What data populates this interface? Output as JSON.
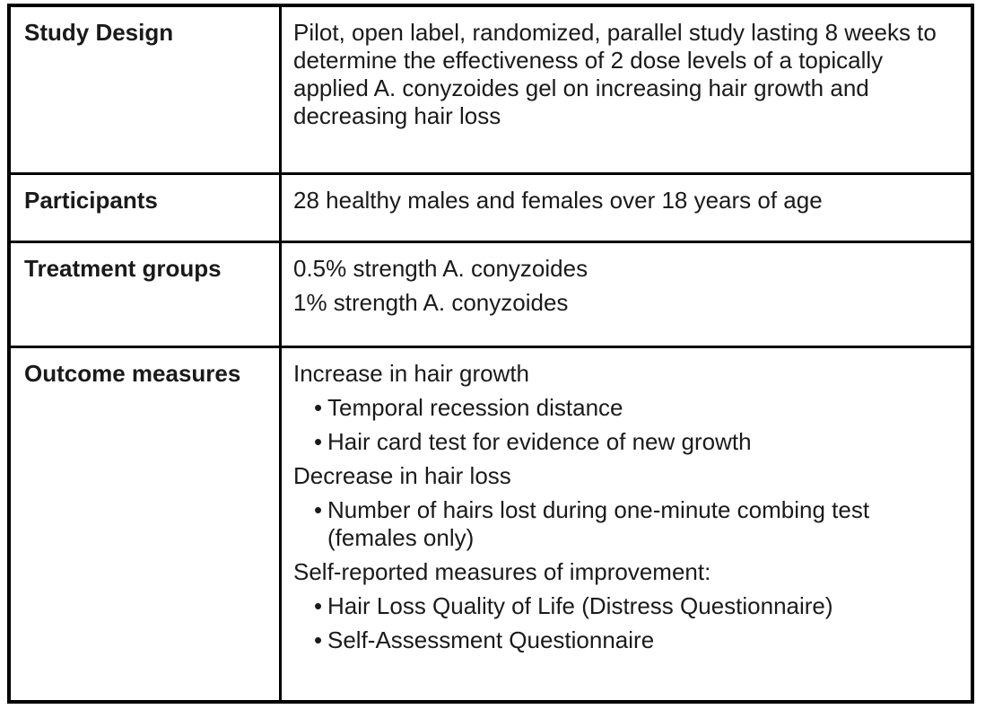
{
  "table": {
    "rows": [
      {
        "label": "Study Design",
        "lines": [
          "Pilot, open label, randomized, parallel study lasting 8 weeks to determine the effectiveness of 2 dose levels of a topically applied A. conyzoides gel on increasing hair growth and decreasing hair loss"
        ]
      },
      {
        "label": "Participants",
        "lines": [
          "28 healthy males and females over 18 years of age"
        ]
      },
      {
        "label": "Treatment groups",
        "lines": [
          "0.5% strength A. conyzoides",
          "1% strength A. conyzoides"
        ]
      },
      {
        "label": "Outcome measures",
        "lines": [
          "Increase in hair growth",
          "Temporal recession distance",
          "Hair card test for evidence of new growth",
          "Decrease in hair loss",
          "Number of hairs lost during one-minute combing test (females only)",
          "Self-reported measures of improvement:",
          "Hair Loss Quality of Life (Distress Questionnaire)",
          "Self-Assessment Questionnaire"
        ]
      }
    ]
  }
}
